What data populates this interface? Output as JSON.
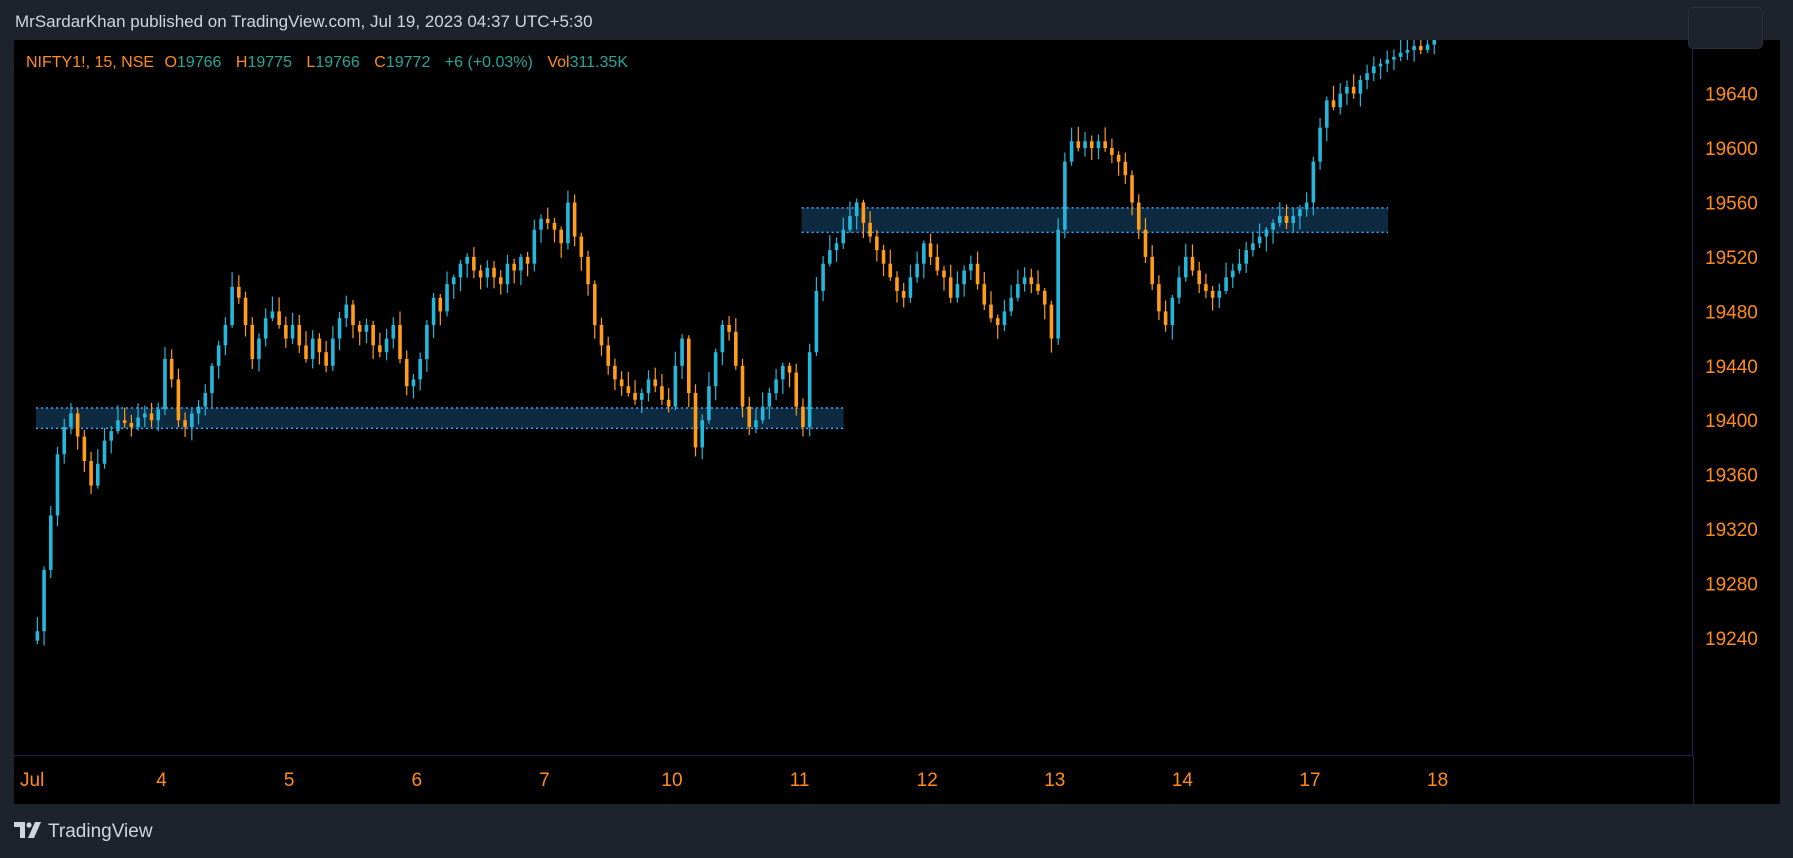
{
  "header": {
    "published_line": "MrSardarKhan published on TradingView.com, Jul 19, 2023 04:37 UTC+5:30"
  },
  "legend": {
    "symbol": "NIFTY1!, 15, NSE",
    "open_label": "O",
    "open": "19766",
    "high_label": "H",
    "high": "19775",
    "low_label": "L",
    "low": "19766",
    "close_label": "C",
    "close": "19772",
    "change": "+6 (+0.03%)",
    "volume_label": "Vol",
    "volume": "311.35K"
  },
  "footer": {
    "brand": "TradingView",
    "logo_icon": "tradingview-logo-icon"
  },
  "colors": {
    "up": "#26b6d9",
    "down": "#ff9c1a",
    "axis_text": "#ff8c1a",
    "zone_line": "#3fa7ff",
    "zone_fill": "#0e2a40"
  },
  "chart_data": {
    "type": "candlestick",
    "symbol": "NIFTY1!",
    "interval": "15",
    "exchange": "NSE",
    "ylim": [
      19220,
      19680
    ],
    "y_ticks": [
      19240,
      19280,
      19320,
      19360,
      19400,
      19440,
      19480,
      19520,
      19560,
      19600,
      19640
    ],
    "x_tick_labels": [
      "Jul",
      "4",
      "5",
      "6",
      "7",
      "10",
      "11",
      "12",
      "13",
      "14",
      "17",
      "18"
    ],
    "sessions": [
      {
        "label": "Jul",
        "open": 19238,
        "points": [
          19245,
          19290,
          19330,
          19375,
          19395,
          19405,
          19388,
          19370,
          19352,
          19368,
          19385,
          19392,
          19400,
          19398,
          19395,
          19402,
          19405,
          19400,
          19408
        ]
      },
      {
        "label": "4",
        "open": 19408,
        "points": [
          19445,
          19430,
          19400,
          19395,
          19405,
          19410,
          19420,
          19440,
          19455,
          19470,
          19498,
          19490,
          19470,
          19445,
          19460,
          19475,
          19480,
          19470,
          19460
        ]
      },
      {
        "label": "5",
        "open": 19460,
        "points": [
          19470,
          19455,
          19445,
          19460,
          19450,
          19440,
          19460,
          19475,
          19485,
          19470,
          19465,
          19470,
          19455,
          19450,
          19460,
          19470,
          19445,
          19425,
          19430
        ]
      },
      {
        "label": "6",
        "open": 19430,
        "points": [
          19445,
          19470,
          19490,
          19480,
          19500,
          19505,
          19515,
          19520,
          19510,
          19505,
          19512,
          19505,
          19500,
          19515,
          19510,
          19520,
          19515,
          19540,
          19548
        ]
      },
      {
        "label": "7",
        "open": 19548,
        "points": [
          19545,
          19540,
          19530,
          19560,
          19535,
          19520,
          19500,
          19470,
          19455,
          19440,
          19430,
          19425,
          19420,
          19415,
          19420,
          19430,
          19425,
          19415,
          19410
        ]
      },
      {
        "label": "10",
        "open": 19410,
        "points": [
          19440,
          19460,
          19420,
          19380,
          19400,
          19425,
          19450,
          19470,
          19465,
          19440,
          19410,
          19395,
          19400,
          19410,
          19420,
          19430,
          19440,
          19435,
          19410
        ]
      },
      {
        "label": "11",
        "open": 19410,
        "points": [
          19395,
          19450,
          19495,
          19515,
          19525,
          19530,
          19540,
          19550,
          19560,
          19545,
          19535,
          19525,
          19515,
          19505,
          19495,
          19490,
          19505,
          19515,
          19530
        ]
      },
      {
        "label": "12",
        "open": 19530,
        "points": [
          19520,
          19510,
          19505,
          19490,
          19500,
          19510,
          19515,
          19500,
          19485,
          19475,
          19470,
          19480,
          19490,
          19500,
          19505,
          19500,
          19495,
          19485,
          19460
        ]
      },
      {
        "label": "13",
        "open": 19460,
        "points": [
          19540,
          19590,
          19605,
          19600,
          19605,
          19600,
          19605,
          19600,
          19595,
          19590,
          19580,
          19560,
          19540,
          19520,
          19500,
          19480,
          19470,
          19490,
          19505
        ]
      },
      {
        "label": "14",
        "open": 19505,
        "points": [
          19520,
          19510,
          19500,
          19495,
          19490,
          19495,
          19505,
          19510,
          19515,
          19525,
          19530,
          19535,
          19540,
          19545,
          19550,
          19545,
          19550,
          19555,
          19560
        ]
      },
      {
        "label": "17",
        "open": 19560,
        "points": [
          19590,
          19615,
          19635,
          19630,
          19640,
          19645,
          19640,
          19650,
          19655,
          19660,
          19662,
          19665,
          19667,
          19670,
          19672,
          19675,
          19672,
          19676,
          19680
        ]
      },
      {
        "label": "18",
        "open": 19680,
        "points": []
      }
    ],
    "zones": [
      {
        "from_session": "Jul",
        "to_session": "11",
        "top": 19409,
        "bottom": 19394
      },
      {
        "from_session": "11",
        "to_session": "17",
        "top": 19556,
        "bottom": 19538
      }
    ]
  }
}
